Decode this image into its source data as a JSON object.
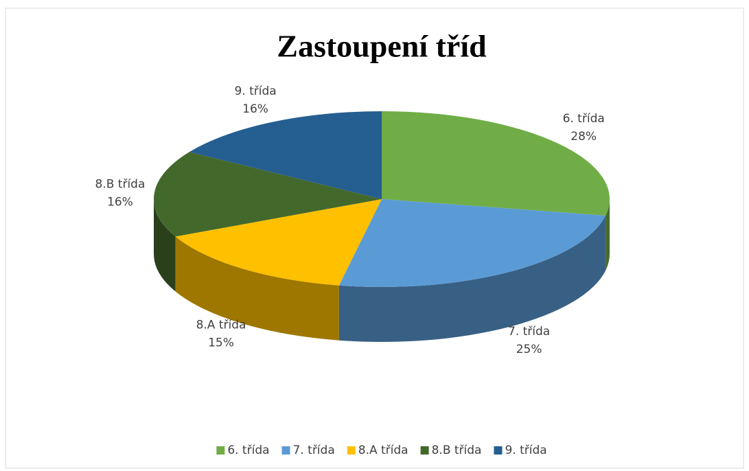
{
  "chart_data": {
    "type": "pie3d",
    "title": "Zastoupení tříd",
    "categories": [
      "6. třída",
      "7. třída",
      "8.A třída",
      "8.B třída",
      "9. třída"
    ],
    "values": [
      28,
      25,
      15,
      16,
      16
    ],
    "value_labels": [
      "28%",
      "25%",
      "15%",
      "16%",
      "16%"
    ],
    "colors": [
      "#70ad47",
      "#5b9bd5",
      "#ffc000",
      "#43682b",
      "#255e91"
    ],
    "legend": "bottom"
  }
}
